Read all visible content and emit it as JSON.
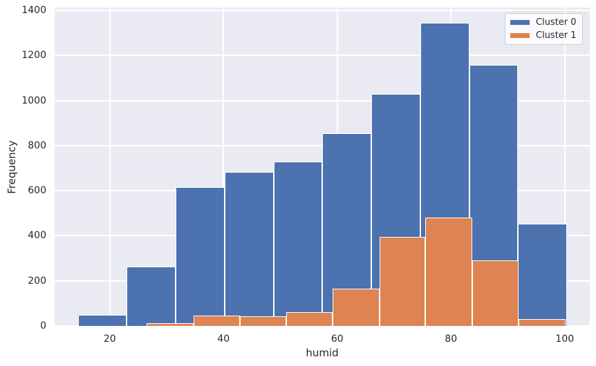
{
  "figure": {
    "background": "#ffffff"
  },
  "style": {
    "plot_bg": "#EAEAF2",
    "grid_color": "#FFFFFF",
    "text_color": "#262626",
    "bar_edge_color": "#FFFFFF",
    "cluster0_color": "#4C72B0",
    "cluster1_color": "#DD8452"
  },
  "legend": {
    "items": [
      {
        "label": "Cluster 0",
        "color": "#4C72B0"
      },
      {
        "label": "Cluster 1",
        "color": "#DD8452"
      }
    ]
  },
  "chart_data": {
    "type": "bar",
    "subtype": "overlaid-histogram",
    "title": "",
    "xlabel": "humid",
    "ylabel": "Frequency",
    "xlim": [
      10.3,
      104.4
    ],
    "ylim": [
      0,
      1413
    ],
    "x_ticks": [
      20,
      40,
      60,
      80,
      100
    ],
    "y_ticks": [
      0,
      200,
      400,
      600,
      800,
      1000,
      1200,
      1400
    ],
    "grid": true,
    "legend_position": "upper right",
    "series": [
      {
        "name": "Cluster 0",
        "color": "#4C72B0",
        "bin_edges": [
          14.4,
          23.0,
          31.6,
          40.2,
          48.8,
          57.4,
          66.0,
          74.6,
          83.2,
          91.8,
          100.4
        ],
        "values": [
          50,
          265,
          615,
          685,
          730,
          855,
          1030,
          1345,
          1160,
          455
        ]
      },
      {
        "name": "Cluster 1",
        "color": "#DD8452",
        "bin_edges": [
          26.5,
          34.7,
          42.9,
          51.0,
          59.2,
          67.4,
          75.5,
          83.7,
          91.9,
          100.1
        ],
        "values": [
          12,
          47,
          43,
          61,
          165,
          395,
          480,
          290,
          30
        ]
      }
    ]
  }
}
